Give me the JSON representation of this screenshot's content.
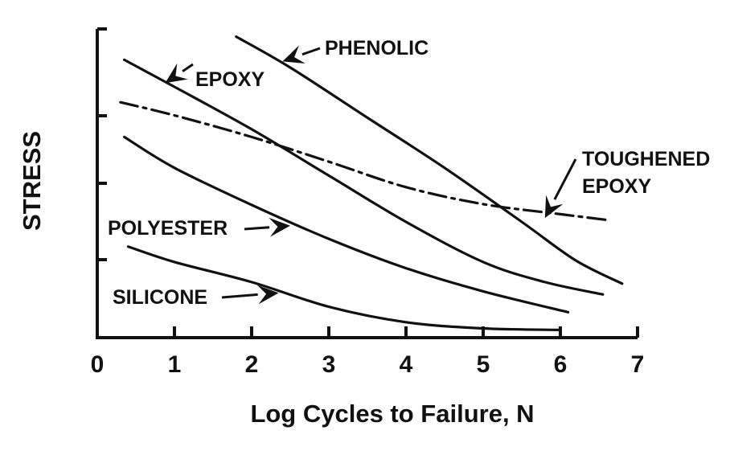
{
  "chart_data": {
    "type": "line",
    "title": "",
    "xlabel": "Log Cycles to Failure, N",
    "ylabel": "STRESS",
    "xlim": [
      0,
      7
    ],
    "ylim": [
      0,
      4
    ],
    "x_ticks": [
      "0",
      "1",
      "2",
      "3",
      "4",
      "5",
      "6",
      "7"
    ],
    "y_ticks_labeled": false,
    "grid": false,
    "legend": "none",
    "series": [
      {
        "name": "PHENOLIC",
        "style": "solid",
        "x": [
          1.8,
          2.5,
          3.5,
          4.5,
          5.5,
          6.2,
          6.8
        ],
        "y": [
          3.9,
          3.5,
          2.85,
          2.2,
          1.5,
          1.0,
          0.7
        ]
      },
      {
        "name": "EPOXY",
        "style": "solid",
        "x": [
          0.35,
          1.0,
          2.0,
          3.0,
          4.0,
          5.0,
          5.8,
          6.55
        ],
        "y": [
          3.6,
          3.25,
          2.7,
          2.1,
          1.5,
          0.98,
          0.72,
          0.56
        ]
      },
      {
        "name": "TOUGHENED EPOXY",
        "style": "dashed",
        "x": [
          0.3,
          1.0,
          2.0,
          3.0,
          4.0,
          5.0,
          6.0,
          6.65
        ],
        "y": [
          3.05,
          2.88,
          2.6,
          2.28,
          1.95,
          1.73,
          1.6,
          1.52
        ]
      },
      {
        "name": "POLYESTER",
        "style": "solid",
        "x": [
          0.35,
          1.0,
          2.0,
          3.0,
          4.0,
          5.0,
          6.1
        ],
        "y": [
          2.6,
          2.2,
          1.72,
          1.28,
          0.9,
          0.6,
          0.33
        ]
      },
      {
        "name": "SILICONE",
        "style": "solid",
        "x": [
          0.4,
          1.0,
          2.0,
          3.0,
          4.0,
          5.0,
          6.0
        ],
        "y": [
          1.18,
          0.98,
          0.72,
          0.4,
          0.2,
          0.12,
          0.1
        ]
      }
    ],
    "annotations": [
      {
        "text": "PHENOLIC",
        "points_to": [
          2.4,
          3.58
        ]
      },
      {
        "text": "EPOXY",
        "points_to": [
          0.88,
          3.3
        ]
      },
      {
        "text": "TOUGHENED",
        "points_to": [
          5.8,
          1.55
        ]
      },
      {
        "text": "EPOXY",
        "points_to": [
          5.8,
          1.55
        ]
      },
      {
        "text": "POLYESTER",
        "points_to": [
          2.5,
          1.45
        ]
      },
      {
        "text": "SILICONE",
        "points_to": [
          2.35,
          0.58
        ]
      }
    ]
  }
}
